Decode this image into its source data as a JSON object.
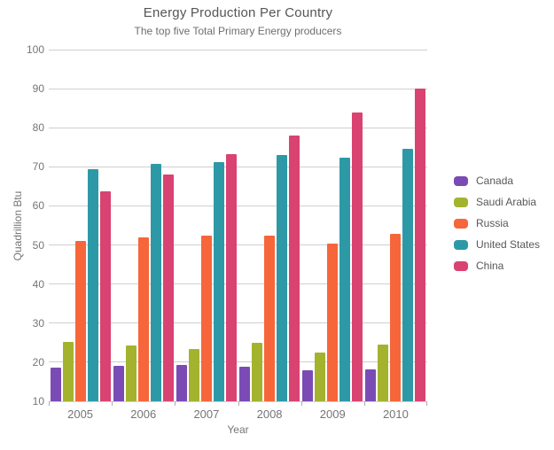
{
  "chart_data": {
    "type": "bar",
    "title": "Energy Production Per Country",
    "subtitle": "The top five Total Primary Energy producers",
    "xlabel": "Year",
    "ylabel": "Quadrillion Btu",
    "ylim": [
      10,
      100
    ],
    "yticks": [
      10,
      20,
      30,
      40,
      50,
      60,
      70,
      80,
      90,
      100
    ],
    "grid": true,
    "legend_position": "right",
    "categories": [
      "2005",
      "2006",
      "2007",
      "2008",
      "2009",
      "2010"
    ],
    "series": [
      {
        "name": "Canada",
        "color": "#7A4BB5",
        "values": [
          18.6,
          19.0,
          19.4,
          18.8,
          18.0,
          18.1
        ]
      },
      {
        "name": "Saudi Arabia",
        "color": "#A3B32E",
        "values": [
          25.1,
          24.3,
          23.4,
          24.9,
          22.5,
          24.4
        ]
      },
      {
        "name": "Russia",
        "color": "#F6663A",
        "values": [
          51.0,
          51.9,
          52.4,
          52.5,
          50.3,
          52.9
        ]
      },
      {
        "name": "United States",
        "color": "#2E99A6",
        "values": [
          69.3,
          70.7,
          71.3,
          73.0,
          72.4,
          74.6
        ]
      },
      {
        "name": "China",
        "color": "#D94371",
        "values": [
          63.8,
          68.0,
          73.2,
          78.1,
          83.8,
          90.1
        ]
      }
    ]
  },
  "style": {
    "gridline_color": "#cfcfcf",
    "axis_text_color": "#757575",
    "title_color": "#565659",
    "subtitle_color": "#6e6e71"
  }
}
